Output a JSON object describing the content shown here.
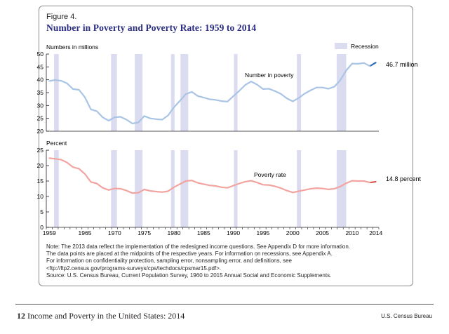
{
  "figure": {
    "label": "Figure 4.",
    "title": "Number in Poverty and Poverty Rate: 1959 to 2014"
  },
  "colors": {
    "recession": "#dcdcf0",
    "number_line": "#a9c4e4",
    "number_line_end": "#2f6db5",
    "rate_line": "#f2a4a0",
    "rate_line_end": "#d9534f",
    "title": "#2b2e83"
  },
  "chart_data": [
    {
      "type": "line",
      "name": "number-in-poverty",
      "ylabel": "Numbers in millions",
      "ylim": [
        20,
        50
      ],
      "yticks": [
        20,
        25,
        30,
        35,
        40,
        45,
        50
      ],
      "series_label": "Number in poverty",
      "end_label": "46.7 million",
      "legend": "Recession",
      "x": [
        1959,
        1960,
        1961,
        1962,
        1963,
        1964,
        1965,
        1966,
        1967,
        1968,
        1969,
        1970,
        1971,
        1972,
        1973,
        1974,
        1975,
        1976,
        1977,
        1978,
        1979,
        1980,
        1981,
        1982,
        1983,
        1984,
        1985,
        1986,
        1987,
        1988,
        1989,
        1990,
        1991,
        1992,
        1993,
        1994,
        1995,
        1996,
        1997,
        1998,
        1999,
        2000,
        2001,
        2002,
        2003,
        2004,
        2005,
        2006,
        2007,
        2008,
        2009,
        2010,
        2011,
        2012,
        2013,
        2014
      ],
      "values": [
        39.5,
        39.9,
        39.6,
        38.6,
        36.4,
        36.1,
        33.2,
        28.5,
        27.8,
        25.4,
        24.1,
        25.4,
        25.6,
        24.5,
        23.0,
        23.4,
        25.9,
        25.0,
        24.7,
        24.5,
        26.1,
        29.3,
        31.8,
        34.4,
        35.3,
        33.7,
        33.1,
        32.4,
        32.2,
        31.7,
        31.5,
        33.6,
        35.7,
        38.0,
        39.3,
        38.1,
        36.4,
        36.5,
        35.6,
        34.5,
        32.8,
        31.6,
        32.9,
        34.6,
        35.9,
        37.0,
        37.0,
        36.5,
        37.3,
        39.8,
        43.6,
        46.3,
        46.2,
        46.5,
        45.3,
        46.7
      ]
    },
    {
      "type": "line",
      "name": "poverty-rate",
      "ylabel": "Percent",
      "ylim": [
        0,
        25
      ],
      "yticks": [
        0,
        5,
        10,
        15,
        20,
        25
      ],
      "series_label": "Poverty rate",
      "end_label": "14.8 percent",
      "x": [
        1959,
        1960,
        1961,
        1962,
        1963,
        1964,
        1965,
        1966,
        1967,
        1968,
        1969,
        1970,
        1971,
        1972,
        1973,
        1974,
        1975,
        1976,
        1977,
        1978,
        1979,
        1980,
        1981,
        1982,
        1983,
        1984,
        1985,
        1986,
        1987,
        1988,
        1989,
        1990,
        1991,
        1992,
        1993,
        1994,
        1995,
        1996,
        1997,
        1998,
        1999,
        2000,
        2001,
        2002,
        2003,
        2004,
        2005,
        2006,
        2007,
        2008,
        2009,
        2010,
        2011,
        2012,
        2013,
        2014
      ],
      "values": [
        22.4,
        22.2,
        21.9,
        21.0,
        19.5,
        19.0,
        17.3,
        14.7,
        14.2,
        12.8,
        12.1,
        12.6,
        12.5,
        11.9,
        11.1,
        11.2,
        12.3,
        11.8,
        11.6,
        11.4,
        11.7,
        13.0,
        14.0,
        15.0,
        15.2,
        14.4,
        14.0,
        13.6,
        13.4,
        13.0,
        12.8,
        13.5,
        14.2,
        14.8,
        15.1,
        14.5,
        13.8,
        13.7,
        13.3,
        12.7,
        11.9,
        11.3,
        11.7,
        12.1,
        12.5,
        12.7,
        12.6,
        12.3,
        12.5,
        13.2,
        14.3,
        15.1,
        15.0,
        15.0,
        14.5,
        14.8
      ]
    }
  ],
  "recessions": [
    [
      1960.3,
      1961.1
    ],
    [
      1969.9,
      1970.9
    ],
    [
      1973.9,
      1975.2
    ],
    [
      1980.0,
      1980.6
    ],
    [
      1981.6,
      1982.9
    ],
    [
      1990.6,
      1991.2
    ],
    [
      2001.2,
      2001.9
    ],
    [
      2007.9,
      2009.5
    ]
  ],
  "xaxis": {
    "range": [
      1959,
      2014
    ],
    "tick_labels": [
      1959,
      1965,
      1970,
      1975,
      1980,
      1985,
      1990,
      1995,
      2000,
      2005,
      2010,
      2014
    ]
  },
  "notes": [
    "Note: The 2013 data reflect the implementation of the redesigned income questions. See Appendix D for more information.",
    "The data points are placed at the midpoints of the respective years. For information on recessions, see Appendix A.",
    "For information on confidentiality protection, sampling error, nonsampling error, and definitions, see",
    "<ftp://ftp2.census.gov/programs-surveys/cps/techdocs/cpsmar15.pdf>."
  ],
  "source": "Source: U.S. Census Bureau, Current Population Survey, 1960 to 2015 Annual Social and Economic Supplements.",
  "footer": {
    "page_number": "12",
    "publication": "Income and Poverty in the United States: 2014",
    "agency": "U.S. Census Bureau"
  }
}
